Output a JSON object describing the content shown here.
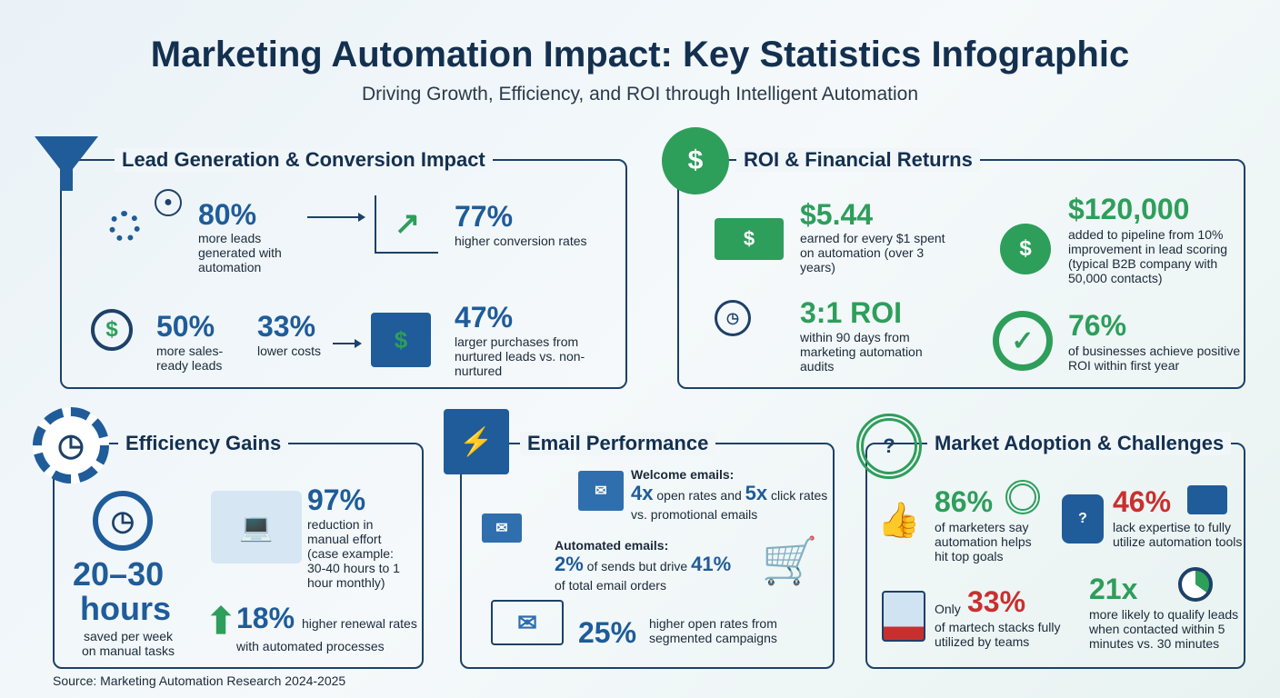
{
  "header": {
    "title": "Marketing Automation Impact: Key Statistics Infographic",
    "subtitle": "Driving Growth, Efficiency, and ROI through Intelligent Automation"
  },
  "colors": {
    "navy": "#14304f",
    "blue": "#1f5c99",
    "green": "#2e9e5b",
    "red": "#c8302f"
  },
  "lead": {
    "title": "Lead Generation & Conversion Impact",
    "s1": {
      "value": "80%",
      "text": "more leads generated with automation"
    },
    "s2": {
      "value": "77%",
      "text": "higher conversion rates"
    },
    "s3": {
      "value": "50%",
      "text": "more sales-ready leads"
    },
    "s4": {
      "value": "33%",
      "text": "lower costs"
    },
    "s5": {
      "value": "47%",
      "text": "larger purchases from nurtured leads vs. non-nurtured"
    }
  },
  "roi": {
    "title": "ROI & Financial Returns",
    "s1": {
      "value": "$5.44",
      "text": "earned for every $1 spent on automation (over 3 years)"
    },
    "s2": {
      "value": "$120,000",
      "text": "added to pipeline from 10% improvement in lead scoring (typical B2B company with 50,000 contacts)"
    },
    "s3": {
      "value": "3:1 ROI",
      "text": "within 90 days from marketing automation audits"
    },
    "s4": {
      "value": "76%",
      "text": "of businesses achieve positive ROI within first year"
    }
  },
  "efficiency": {
    "title": "Efficiency Gains",
    "s1": {
      "value": "20–30",
      "value2": "hours",
      "text": "saved per week on manual tasks"
    },
    "s2": {
      "value": "97%",
      "text": "reduction in manual effort (case example: 30-40 hours to 1 hour monthly)"
    },
    "s3": {
      "value": "18%",
      "text1": "higher renewal rates",
      "text2": "with automated processes"
    }
  },
  "email": {
    "title": "Email Performance",
    "welcome": {
      "label": "Welcome emails:",
      "v1": "4x",
      "t1": " open rates and ",
      "v2": "5x",
      "t2": " click rates",
      "t3": "vs. promotional emails"
    },
    "automated": {
      "label": "Automated emails:",
      "v1": "2%",
      "t1": " of sends but drive ",
      "v2": "41%",
      "t2": "of total email orders"
    },
    "segmented": {
      "value": "25%",
      "text": "higher open rates from segmented campaigns"
    }
  },
  "market": {
    "title": "Market Adoption & Challenges",
    "s1": {
      "value": "86%",
      "text": "of marketers say automation helps hit top goals"
    },
    "s2": {
      "value": "46%",
      "text": "lack expertise to fully utilize automation tools"
    },
    "s3": {
      "prefix": "Only",
      "value": "33%",
      "text": "of martech stacks fully utilized by teams"
    },
    "s4": {
      "value": "21x",
      "text": "more likely to qualify leads when contacted within 5 minutes vs. 30 minutes"
    }
  },
  "footer": {
    "source": "Source: Marketing Automation Research 2024-2025"
  }
}
